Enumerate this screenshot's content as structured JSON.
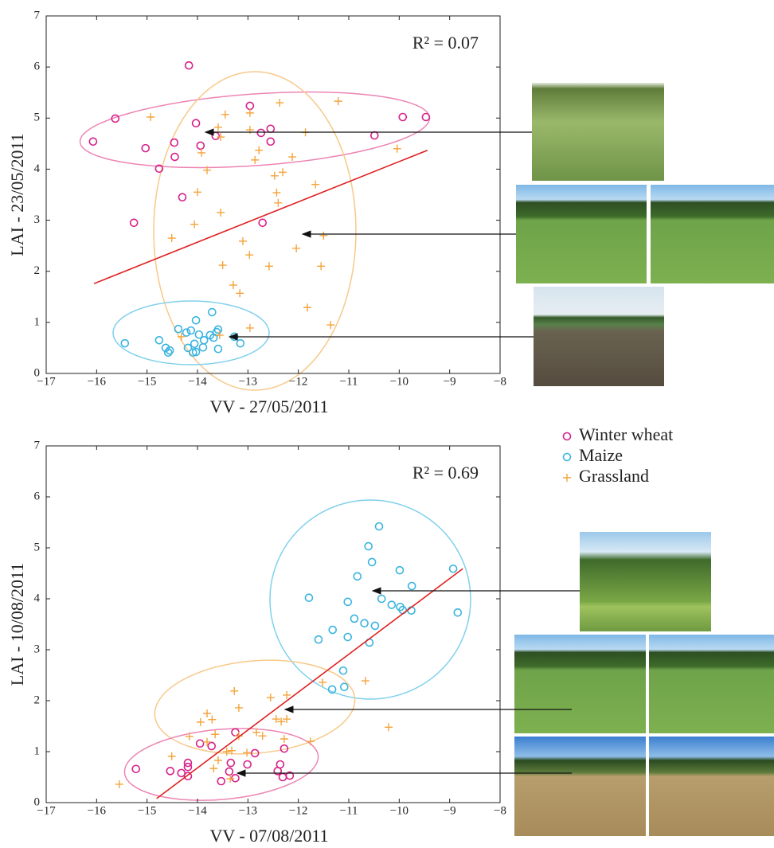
{
  "chart_data": [
    {
      "type": "scatter",
      "xlabel": "VV - 27/05/2011",
      "ylabel": "LAI - 23/05/2011",
      "annotation": "R² = 0.07",
      "xlim": [
        -17,
        -8
      ],
      "ylim": [
        0,
        7
      ],
      "xticks": [
        {
          "value": -17,
          "label": "−17"
        },
        {
          "value": -16,
          "label": "−16"
        },
        {
          "value": -15,
          "label": "−15"
        },
        {
          "value": -14,
          "label": "−14"
        },
        {
          "value": -13,
          "label": "−13"
        },
        {
          "value": -12,
          "label": "−12"
        },
        {
          "value": -11,
          "label": "−11"
        },
        {
          "value": -10,
          "label": "−10"
        },
        {
          "value": -9,
          "label": "−9"
        },
        {
          "value": -8,
          "label": "−8"
        }
      ],
      "yticks": [
        0,
        1,
        2,
        3,
        4,
        5,
        6,
        7
      ],
      "series": [
        {
          "name": "Winter wheat",
          "color": "#d6218a",
          "marker": "o",
          "x": [
            -14.17,
            -15.63,
            -16.07,
            -15.03,
            -14.46,
            -14.03,
            -14.45,
            -14.76,
            -13.94,
            -13.64,
            -12.96,
            -12.55,
            -12.74,
            -12.55,
            -14.3,
            -15.26,
            -12.71,
            -10.49,
            -9.93,
            -9.47
          ],
          "y": [
            6.03,
            4.99,
            4.54,
            4.41,
            4.52,
            4.9,
            4.24,
            4.01,
            4.46,
            4.65,
            5.24,
            4.79,
            4.71,
            4.54,
            3.45,
            2.95,
            2.95,
            4.66,
            5.02,
            5.02
          ]
        },
        {
          "name": "Maize",
          "color": "#3ab4de",
          "marker": "o",
          "x": [
            -15.44,
            -14.76,
            -14.63,
            -14.58,
            -14.55,
            -14.38,
            -14.22,
            -14.19,
            -14.13,
            -14.09,
            -14.06,
            -14.03,
            -14.03,
            -13.97,
            -13.89,
            -13.87,
            -13.75,
            -13.71,
            -13.68,
            -13.62,
            -13.59,
            -13.59,
            -13.27,
            -13.15
          ],
          "y": [
            0.59,
            0.65,
            0.5,
            0.41,
            0.45,
            0.87,
            0.8,
            0.5,
            0.84,
            0.41,
            0.58,
            0.42,
            1.04,
            0.76,
            0.51,
            0.65,
            0.75,
            1.2,
            0.7,
            0.81,
            0.86,
            0.48,
            0.72,
            0.59
          ]
        },
        {
          "name": "Grassland",
          "color": "#f4a43c",
          "marker": "+",
          "x": [
            -14.93,
            -13.59,
            -13.45,
            -12.96,
            -12.37,
            -12.96,
            -11.86,
            -11.21,
            -10.04,
            -13.92,
            -13.81,
            -13.54,
            -12.78,
            -12.86,
            -12.31,
            -12.47,
            -12.12,
            -11.66,
            -14.0,
            -13.54,
            -12.43,
            -12.4,
            -14.06,
            -14.51,
            -11.5,
            -13.1,
            -12.97,
            -12.04,
            -13.5,
            -12.58,
            -11.55,
            -13.29,
            -13.16,
            -11.82,
            -12.96,
            -11.36,
            -14.32,
            -13.56
          ],
          "y": [
            5.02,
            4.82,
            5.07,
            5.1,
            5.3,
            4.77,
            4.72,
            5.33,
            4.4,
            4.32,
            3.98,
            4.63,
            4.37,
            4.18,
            3.94,
            3.87,
            4.24,
            3.7,
            3.55,
            3.15,
            3.54,
            3.34,
            2.92,
            2.65,
            2.7,
            2.59,
            2.32,
            2.45,
            2.12,
            2.1,
            2.1,
            1.73,
            1.57,
            1.29,
            0.89,
            0.95,
            0.72,
            0.75
          ]
        }
      ],
      "trend": {
        "color": "#e02020",
        "x": [
          -16.05,
          -9.44
        ],
        "y": [
          1.76,
          4.37
        ]
      }
    },
    {
      "type": "scatter",
      "xlabel": "VV - 07/08/2011",
      "ylabel": "LAI - 10/08/2011",
      "annotation": "R² = 0.69",
      "xlim": [
        -17,
        -8
      ],
      "ylim": [
        0,
        7
      ],
      "xticks": [
        {
          "value": -17,
          "label": "−17"
        },
        {
          "value": -16,
          "label": "−16"
        },
        {
          "value": -15,
          "label": "−15"
        },
        {
          "value": -14,
          "label": "−14"
        },
        {
          "value": -13,
          "label": "−13"
        },
        {
          "value": -12,
          "label": "−12"
        },
        {
          "value": -11,
          "label": "−11"
        },
        {
          "value": -10,
          "label": "−10"
        },
        {
          "value": -9,
          "label": "−9"
        },
        {
          "value": -8,
          "label": "−8"
        }
      ],
      "yticks": [
        0,
        1,
        2,
        3,
        4,
        5,
        6,
        7
      ],
      "legend": "outside top right",
      "series": [
        {
          "name": "Winter wheat",
          "color": "#d6218a",
          "marker": "o",
          "x": [
            -15.22,
            -14.54,
            -14.32,
            -14.19,
            -14.19,
            -14.19,
            -13.95,
            -13.72,
            -13.53,
            -13.34,
            -13.37,
            -13.25,
            -13.25,
            -13.01,
            -12.86,
            -12.41,
            -12.36,
            -12.28,
            -12.31,
            -12.17
          ],
          "y": [
            0.66,
            0.62,
            0.58,
            0.7,
            0.52,
            0.78,
            1.16,
            1.11,
            0.42,
            0.78,
            0.61,
            0.48,
            1.38,
            0.75,
            0.97,
            0.62,
            0.75,
            1.06,
            0.5,
            0.53
          ]
        },
        {
          "name": "Maize",
          "color": "#3ab4de",
          "marker": "o",
          "x": [
            -10.4,
            -10.61,
            -10.54,
            -10.83,
            -9.99,
            -9.75,
            -8.93,
            -8.84,
            -11.79,
            -11.02,
            -10.35,
            -10.15,
            -9.98,
            -9.93,
            -9.76,
            -10.89,
            -10.69,
            -10.48,
            -11.32,
            -11.6,
            -11.02,
            -10.59,
            -11.11,
            -11.09,
            -11.33
          ],
          "y": [
            5.42,
            5.03,
            4.72,
            4.44,
            4.56,
            4.25,
            4.59,
            3.73,
            4.02,
            3.94,
            4.0,
            3.88,
            3.84,
            3.78,
            3.77,
            3.61,
            3.52,
            3.47,
            3.39,
            3.2,
            3.25,
            3.14,
            2.59,
            2.27,
            2.22
          ]
        },
        {
          "name": "Grassland",
          "color": "#f4a43c",
          "marker": "+",
          "x": [
            -15.55,
            -14.51,
            -14.16,
            -13.27,
            -13.81,
            -13.71,
            -13.94,
            -13.18,
            -13.65,
            -13.81,
            -13.59,
            -13.42,
            -13.32,
            -13.18,
            -12.83,
            -12.71,
            -12.55,
            -12.44,
            -12.34,
            -12.23,
            -12.23,
            -12.28,
            -11.76,
            -11.52,
            -10.67,
            -10.21,
            -13.68,
            -13.35,
            -13.02
          ],
          "y": [
            0.36,
            0.91,
            1.3,
            2.19,
            1.75,
            1.63,
            1.58,
            1.86,
            1.34,
            1.19,
            0.83,
            1.0,
            1.02,
            1.31,
            1.38,
            1.31,
            2.06,
            1.64,
            1.59,
            2.11,
            1.64,
            1.25,
            1.2,
            2.36,
            2.39,
            1.48,
            0.67,
            0.47,
            0.98
          ]
        }
      ],
      "trend": {
        "color": "#e02020",
        "x": [
          -14.81,
          -8.74
        ],
        "y": [
          0.08,
          4.59
        ]
      }
    }
  ]
}
